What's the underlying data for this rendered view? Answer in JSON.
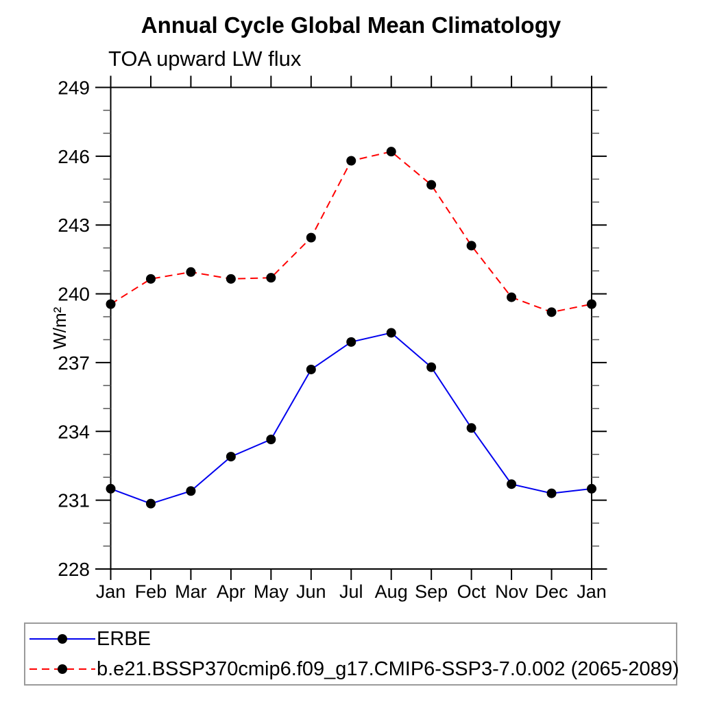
{
  "chart_data": {
    "type": "line",
    "title": "Annual Cycle Global Mean Climatology",
    "subtitle": "TOA upward LW flux",
    "ylabel": "W/m²",
    "xlabel": "",
    "categories": [
      "Jan",
      "Feb",
      "Mar",
      "Apr",
      "May",
      "Jun",
      "Jul",
      "Aug",
      "Sep",
      "Oct",
      "Nov",
      "Dec",
      "Jan"
    ],
    "ylim": [
      228,
      249
    ],
    "ytick_major_step": 3,
    "ytick_minor_step": 1,
    "ytick_labels": [
      "228",
      "231",
      "234",
      "237",
      "240",
      "243",
      "246",
      "249"
    ],
    "grid": "off",
    "legend_position": "bottom",
    "series": [
      {
        "name": "ERBE",
        "color": "#0000ee",
        "line_style": "solid",
        "marker": "filled-circle",
        "marker_color": "#000000",
        "values": [
          231.5,
          230.85,
          231.4,
          232.9,
          233.65,
          236.7,
          237.9,
          238.3,
          236.8,
          234.15,
          231.7,
          231.3,
          231.5
        ]
      },
      {
        "name": "b.e21.BSSP370cmip6.f09_g17.CMIP6-SSP3-7.0.002 (2065-2089)",
        "color": "#ff0000",
        "line_style": "dashed",
        "marker": "filled-circle",
        "marker_color": "#000000",
        "values": [
          239.55,
          240.65,
          240.95,
          240.65,
          240.7,
          242.45,
          245.8,
          246.2,
          244.75,
          242.1,
          239.85,
          239.2,
          239.55
        ]
      }
    ]
  },
  "colors": {
    "axis": "#000000",
    "minor_tick": "#555555",
    "legend_border": "#9a9a9a",
    "background": "#ffffff"
  }
}
